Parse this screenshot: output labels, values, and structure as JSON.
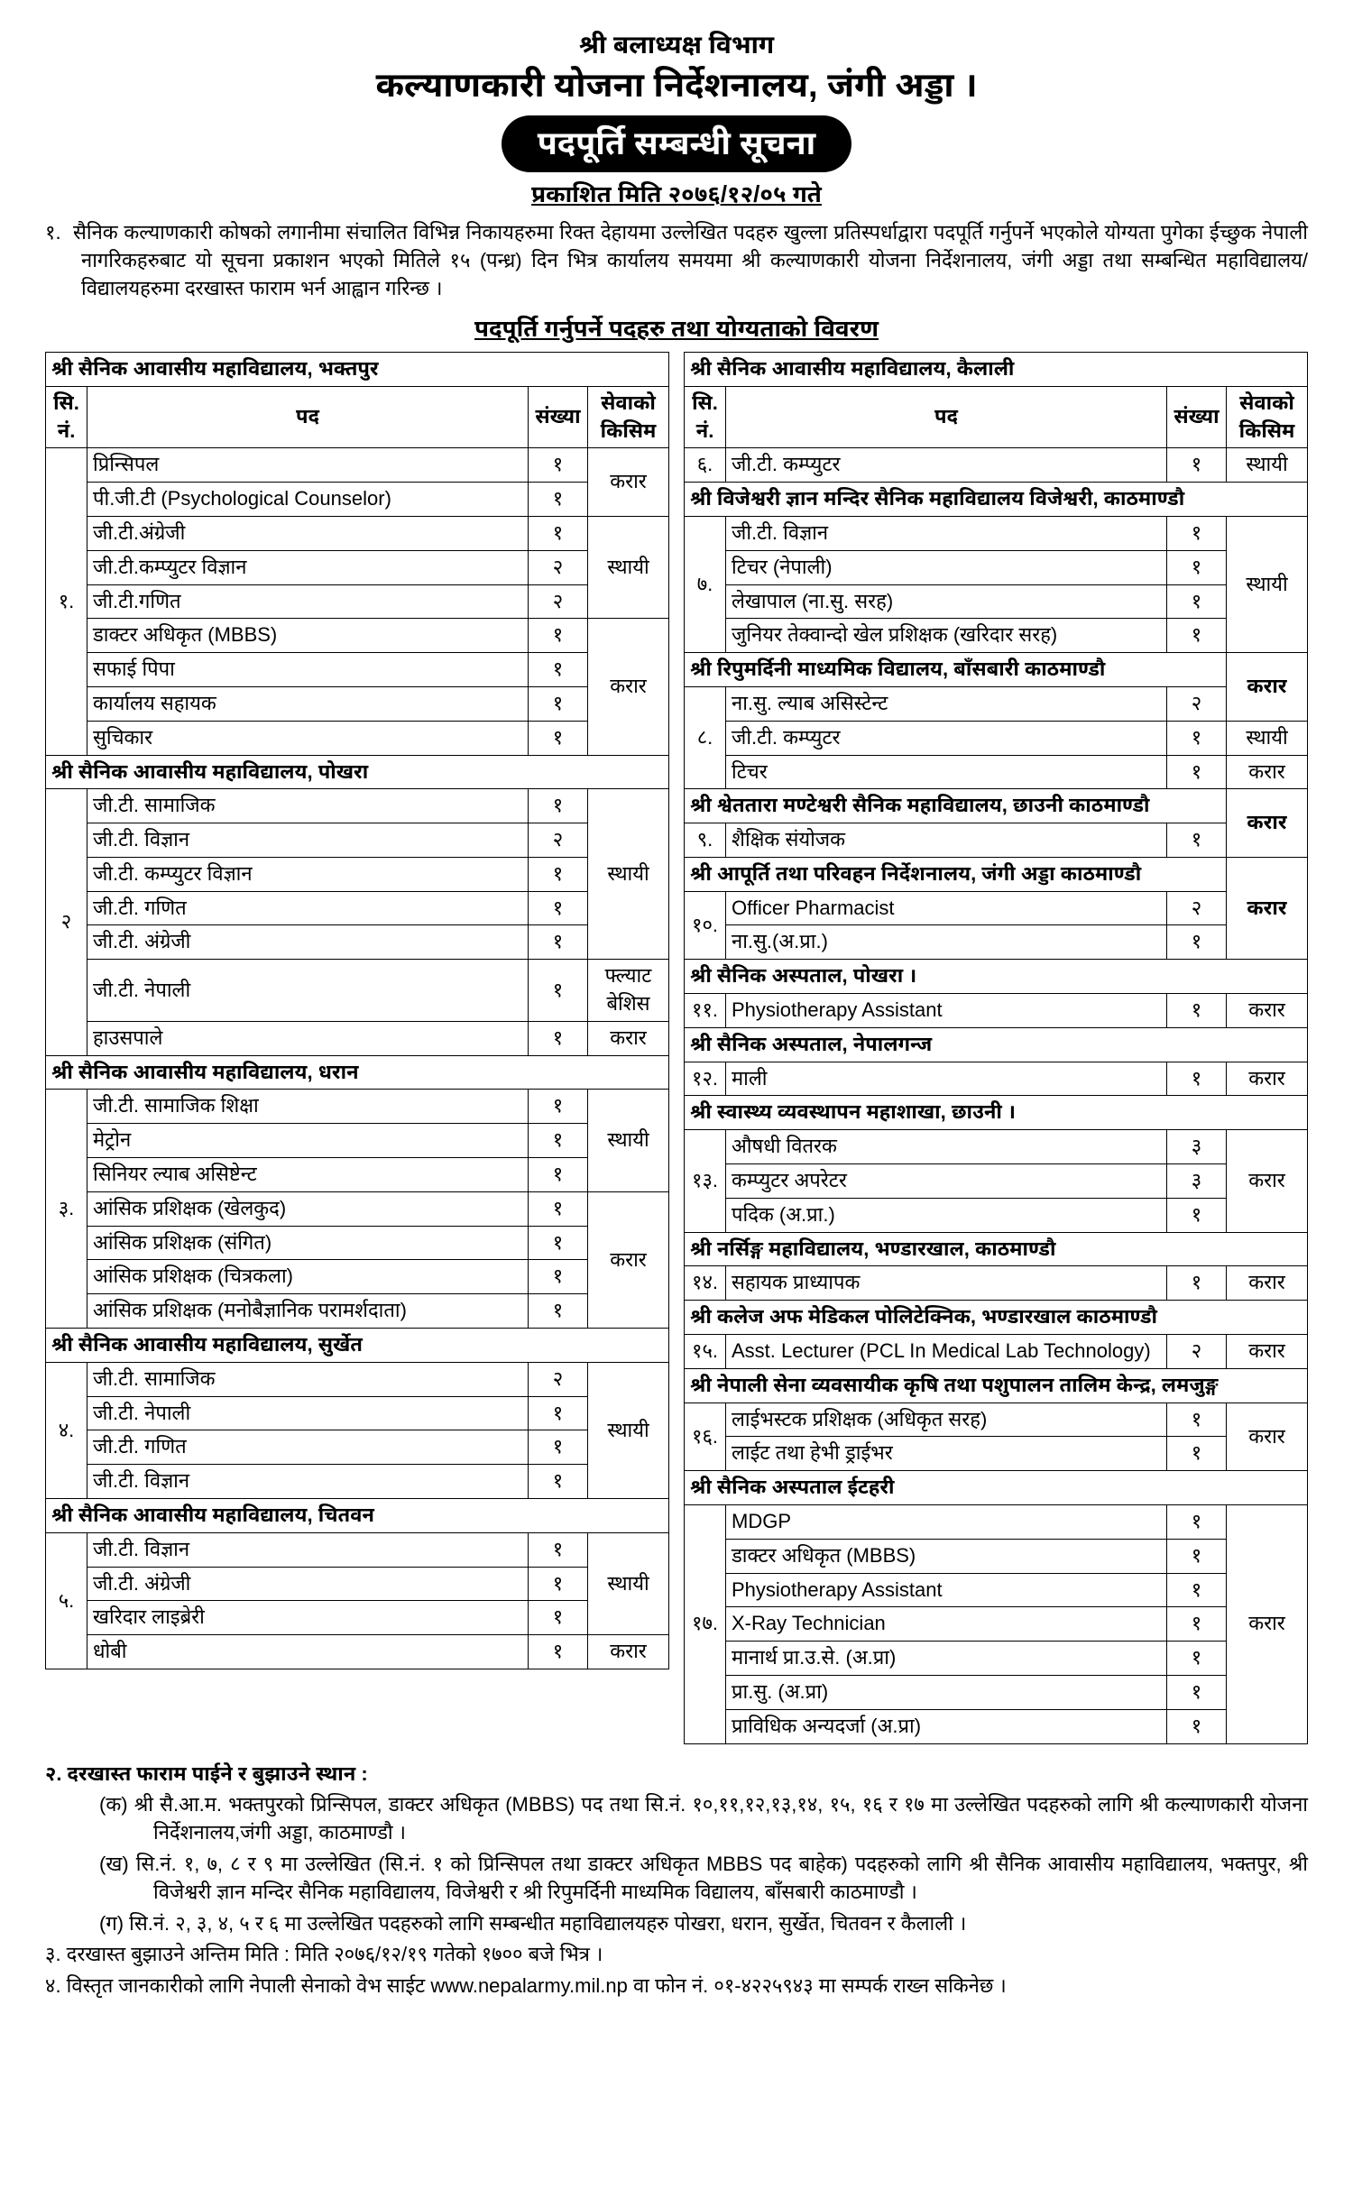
{
  "header": {
    "dept": "श्री बलाध्यक्ष विभाग",
    "org": "कल्याणकारी योजना निर्देशनालय, जंगी अड्डा ।",
    "notice": "पदपूर्ति सम्बन्धी सूचना",
    "pubdate": "प्रकाशित मिति २०७६/१२/०५ गते"
  },
  "intro_num": "१.",
  "intro": "सैनिक कल्याणकारी कोषको लगानीमा संचालित विभिन्न निकायहरुमा रिक्त देहायमा उल्लेखित पदहरु खुल्ला प्रतिस्पर्धाद्वारा पदपूर्ति गर्नुपर्ने भएकोले योग्यता पुगेका ईच्छुक नेपाली नागरिकहरुबाट यो सूचना प्रकाशन भएको मितिले १५ (पन्ध्र) दिन भित्र कार्यालय समयमा श्री कल्याणकारी योजना निर्देशनालय, जंगी अड्डा तथा सम्बन्धित महाविद्यालय/विद्यालयहरुमा दरखास्त फाराम भर्न आह्वान गरिन्छ ।",
  "section_title": "पदपूर्ति गर्नुपर्ने पदहरु तथा योग्यताको विवरण",
  "col_headers": {
    "sn": "सि.\nनं.",
    "pad": "पद",
    "cnt": "संख्या",
    "svc": "सेवाको\nकिसिम"
  },
  "left": [
    {
      "inst": "श्री सैनिक आवासीय महाविद्यालय, भक्तपुर",
      "sn": "१.",
      "groups": [
        {
          "svc": "करार",
          "rows": [
            [
              "प्रिन्सिपल",
              "१"
            ],
            [
              "पी.जी.टी (Psychological Counselor)",
              "१"
            ]
          ]
        },
        {
          "svc": "स्थायी",
          "rows": [
            [
              "जी.टी.अंग्रेजी",
              "१"
            ],
            [
              "जी.टी.कम्प्युटर विज्ञान",
              "२"
            ],
            [
              "जी.टी.गणित",
              "२"
            ]
          ]
        },
        {
          "svc": "करार",
          "rows": [
            [
              "डाक्टर अधिकृत (MBBS)",
              "१"
            ],
            [
              "सफाई पिपा",
              "१"
            ],
            [
              "कार्यालय सहायक",
              "१"
            ],
            [
              "सुचिकार",
              "१"
            ]
          ]
        }
      ]
    },
    {
      "inst": "श्री सैनिक आवासीय महाविद्यालय, पोखरा",
      "sn": "२",
      "groups": [
        {
          "svc": "स्थायी",
          "rows": [
            [
              "जी.टी. सामाजिक",
              "१"
            ],
            [
              "जी.टी. विज्ञान",
              "२"
            ],
            [
              "जी.टी. कम्प्युटर विज्ञान",
              "१"
            ],
            [
              "जी.टी. गणित",
              "१"
            ],
            [
              "जी.टी. अंग्रेजी",
              "१"
            ]
          ]
        },
        {
          "svc": "फ्ल्याट\nबेशिस",
          "rows": [
            [
              "जी.टी. नेपाली",
              "१"
            ]
          ]
        },
        {
          "svc": "करार",
          "rows": [
            [
              "हाउसपाले",
              "१"
            ]
          ]
        }
      ]
    },
    {
      "inst": "श्री सैनिक आवासीय महाविद्यालय, धरान",
      "sn": "३.",
      "groups": [
        {
          "svc": "स्थायी",
          "rows": [
            [
              "जी.टी. सामाजिक शिक्षा",
              "१"
            ],
            [
              "मेट्रोन",
              "१"
            ],
            [
              "सिनियर ल्याब असिष्टेन्ट",
              "१"
            ]
          ]
        },
        {
          "svc": "करार",
          "rows": [
            [
              "आंसिक प्रशिक्षक (खेलकुद)",
              "१"
            ],
            [
              "आंसिक प्रशिक्षक (संगित)",
              "१"
            ],
            [
              "आंसिक प्रशिक्षक (चित्रकला)",
              "१"
            ],
            [
              "आंसिक प्रशिक्षक (मनोबैज्ञानिक परामर्शदाता)",
              "१"
            ]
          ]
        }
      ]
    },
    {
      "inst": "श्री सैनिक आवासीय महाविद्यालय, सुर्खेत",
      "sn": "४.",
      "groups": [
        {
          "svc": "स्थायी",
          "rows": [
            [
              "जी.टी. सामाजिक",
              "२"
            ],
            [
              "जी.टी. नेपाली",
              "१"
            ],
            [
              "जी.टी. गणित",
              "१"
            ],
            [
              "जी.टी. विज्ञान",
              "१"
            ]
          ]
        }
      ]
    },
    {
      "inst": "श्री सैनिक आवासीय महाविद्यालय, चितवन",
      "sn": "५.",
      "groups": [
        {
          "svc": "स्थायी",
          "rows": [
            [
              "जी.टी. विज्ञान",
              "१"
            ],
            [
              "जी.टी. अंग्रेजी",
              "१"
            ],
            [
              "खरिदार लाइब्रेरी",
              "१"
            ]
          ]
        },
        {
          "svc": "करार",
          "rows": [
            [
              "धोबी",
              "१"
            ]
          ]
        }
      ]
    }
  ],
  "right": [
    {
      "inst": "श्री सैनिक आवासीय महाविद्यालय, कैलाली",
      "header": true,
      "sn": "६.",
      "groups": [
        {
          "svc": "स्थायी",
          "rows": [
            [
              "जी.टी. कम्प्युटर",
              "१"
            ]
          ]
        }
      ]
    },
    {
      "inst": "श्री विजेश्वरी ज्ञान मन्दिर सैनिक महाविद्यालय विजेश्वरी, काठमाण्डौ",
      "sn": "७.",
      "svc_span_top": "",
      "groups": [
        {
          "svc": "स्थायी",
          "rows": [
            [
              "जी.टी. विज्ञान",
              "१"
            ],
            [
              "टिचर (नेपाली)",
              "१"
            ],
            [
              "लेखापाल (ना.सु. सरह)",
              "१"
            ],
            [
              "जुनियर तेक्वान्दो खेल प्रशिक्षक (खरिदार सरह)",
              "१"
            ]
          ]
        }
      ]
    },
    {
      "inst": "श्री रिपुमर्दिनी माध्यमिक विद्यालय, बाँसबारी काठमाण्डौ",
      "inst_svc": "करार",
      "sn": "८.",
      "groups": [
        {
          "svc": "",
          "rows": [
            [
              "ना.सु. ल्याब असिस्टेन्ट",
              "२"
            ]
          ]
        },
        {
          "svc": "स्थायी",
          "rows": [
            [
              "जी.टी. कम्प्युटर",
              "१"
            ]
          ]
        },
        {
          "svc": "करार",
          "rows": [
            [
              "टिचर",
              "१"
            ]
          ]
        }
      ]
    },
    {
      "inst": "श्री श्वेततारा मण्टेश्वरी सैनिक महाविद्यालय, छाउनी काठमाण्डौ",
      "inst_svc": "करार",
      "sn": "९.",
      "groups": [
        {
          "svc": "",
          "rows": [
            [
              "शैक्षिक संयोजक",
              "१"
            ]
          ]
        }
      ]
    },
    {
      "inst": "श्री आपूर्ति तथा परिवहन निर्देशनालय, जंगी अड्डा काठमाण्डौ",
      "inst_svc": "करार",
      "sn": "१०.",
      "groups": [
        {
          "svc": "",
          "rows": [
            [
              "Officer  Pharmacist",
              "२"
            ],
            [
              "ना.सु.(अ.प्रा.)",
              "१"
            ]
          ]
        }
      ]
    },
    {
      "inst": "श्री सैनिक अस्पताल, पोखरा ।",
      "sn": "११.",
      "groups": [
        {
          "svc": "करार",
          "rows": [
            [
              "Physiotherapy Assistant",
              "१"
            ]
          ]
        }
      ]
    },
    {
      "inst": "श्री सैनिक अस्पताल, नेपालगन्ज",
      "sn": "१२.",
      "groups": [
        {
          "svc": "करार",
          "rows": [
            [
              "माली",
              "१"
            ]
          ]
        }
      ]
    },
    {
      "inst": "श्री स्वास्थ्य व्यवस्थापन महाशाखा, छाउनी ।",
      "sn": "१३.",
      "groups": [
        {
          "svc": "करार",
          "rows": [
            [
              "औषधी वितरक",
              "३"
            ],
            [
              "कम्प्युटर अपरेटर",
              "३"
            ],
            [
              "पदिक (अ.प्रा.)",
              "१"
            ]
          ]
        }
      ]
    },
    {
      "inst": "श्री नर्सिङ्ग महाविद्यालय,  भण्डारखाल, काठमाण्डौ",
      "sn": "१४.",
      "groups": [
        {
          "svc": "करार",
          "rows": [
            [
              "सहायक प्राध्यापक",
              "१"
            ]
          ]
        }
      ]
    },
    {
      "inst": "श्री कलेज अफ मेडिकल पोलिटेक्निक, भण्डारखाल काठमाण्डौ",
      "sn": "१५.",
      "groups": [
        {
          "svc": "करार",
          "rows": [
            [
              "Asst. Lecturer  (PCL In Medical Lab Technology)",
              "२"
            ]
          ]
        }
      ]
    },
    {
      "inst": "श्री नेपाली सेना व्यवसायीक कृषि तथा पशुपालन तालिम केन्द्र, लमजुङ्ग",
      "sn": "१६.",
      "groups": [
        {
          "svc": "करार",
          "rows": [
            [
              "लाईभस्टक प्रशिक्षक (अधिकृत सरह)",
              "१"
            ],
            [
              "लाईट तथा हेभी ड्राईभर",
              "१"
            ]
          ]
        }
      ]
    },
    {
      "inst": "श्री सैनिक अस्पताल ईटहरी",
      "sn": "१७.",
      "groups": [
        {
          "svc": "करार",
          "rows": [
            [
              "MDGP",
              "१"
            ],
            [
              "डाक्टर अधिकृत (MBBS)",
              "१"
            ],
            [
              "Physiotherapy Assistant",
              "१"
            ],
            [
              "X-Ray Technician",
              "१"
            ],
            [
              "मानार्थ प्रा.उ.से. (अ.प्रा)",
              "१"
            ],
            [
              "प्रा.सु. (अ.प्रा)",
              "१"
            ],
            [
              "प्राविधिक अन्यदर्जा (अ.प्रा)",
              "१"
            ]
          ]
        }
      ]
    }
  ],
  "footer": {
    "f2_head": "२.   दरखास्त फाराम पाईने र बुझाउने स्थान :",
    "f2a": "(क) श्री सै.आ.म. भक्तपुरको प्रिन्सिपल, डाक्टर अधिकृत (MBBS) पद तथा सि.नं. १०,११,१२,१३,१४, १५, १६ र १७ मा उल्लेखित पदहरुको लागि श्री कल्याणकारी योजना निर्देशनालय,जंगी अड्डा, काठमाण्डौ ।",
    "f2b": "(ख) सि.नं. १, ७, ८ र ९ मा उल्लेखित (सि.नं. १ को प्रिन्सिपल तथा डाक्टर अधिकृत MBBS पद बाहेक) पदहरुको लागि श्री सैनिक आवासीय महाविद्यालय, भक्तपुर, श्री विजेश्वरी ज्ञान मन्दिर सैनिक महाविद्यालय, विजेश्वरी र श्री रिपुमर्दिनी माध्यमिक विद्यालय, बाँसबारी काठमाण्डौ ।",
    "f2c": "(ग)  सि.नं. २, ३, ४, ५ र ६ मा उल्लेखित पदहरुको लागि सम्बन्धीत महाविद्यालयहरु पोखरा, धरान, सुर्खेत, चितवन र कैलाली ।",
    "f3": "३.   दरखास्त बुझाउने अन्तिम मिति : मिति २०७६/१२/१९ गतेको १७०० बजे भित्र ।",
    "f4": "४.   विस्तृत जानकारीको लागि नेपाली सेनाको वेभ साईट www.nepalarmy.mil.np  वा फोन नं. ०१-४२२५९४३ मा सम्पर्क राख्न सकिनेछ ।"
  }
}
